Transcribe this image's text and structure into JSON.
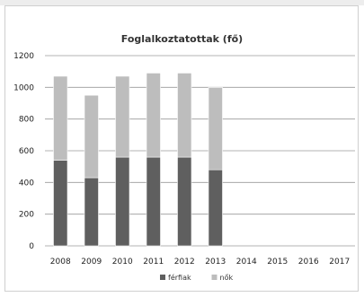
{
  "chart_data": {
    "type": "bar",
    "stacked": true,
    "title": "Foglalkoztatottak (fő)",
    "categories": [
      "2008",
      "2009",
      "2010",
      "2011",
      "2012",
      "2013",
      "2014",
      "2015",
      "2016",
      "2017"
    ],
    "series": [
      {
        "name": "férfiak",
        "values": [
          540,
          430,
          560,
          560,
          560,
          480,
          null,
          null,
          null,
          null
        ],
        "color": "#5f5f5f"
      },
      {
        "name": "nők",
        "values": [
          530,
          520,
          510,
          530,
          530,
          520,
          null,
          null,
          null,
          null
        ],
        "color": "#bdbdbd"
      }
    ],
    "ylim": [
      0,
      1200
    ],
    "yticks": [
      0,
      200,
      400,
      600,
      800,
      1000,
      1200
    ],
    "grid": true,
    "legend": "bottom"
  }
}
